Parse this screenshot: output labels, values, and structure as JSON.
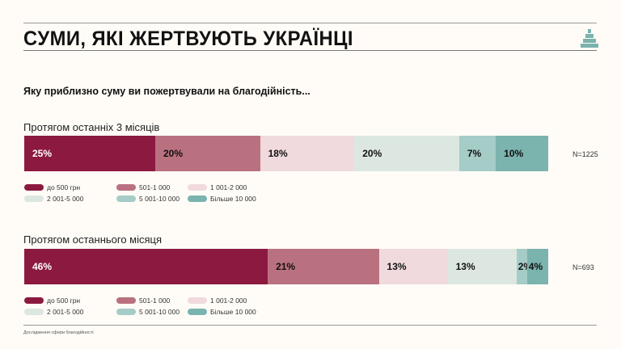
{
  "title": "СУМИ, ЯКІ ЖЕРТВУЮТЬ УКРАЇНЦІ",
  "question": "Яку приблизно суму ви пожертвували на благодійність...",
  "footer": "Дослідження сфери благодійності",
  "colors": [
    "#8c1a40",
    "#ba717f",
    "#f0dadd",
    "#dce7e1",
    "#a5ccc7",
    "#7bb3ae"
  ],
  "chart_data": [
    {
      "type": "bar",
      "orientation": "horizontal-stacked",
      "title": "Протягом останніх 3 місяців",
      "n_label": "N=1225",
      "categories": [
        "до 500 грн",
        "501-1 000",
        "1 001-2 000",
        "2 001-5 000",
        "5 001-10 000",
        "Більше 10 000"
      ],
      "values": [
        25,
        20,
        18,
        20,
        7,
        10
      ],
      "labels": [
        "25%",
        "20%",
        "18%",
        "20%",
        "7%",
        "10%"
      ],
      "legend": "bottom"
    },
    {
      "type": "bar",
      "orientation": "horizontal-stacked",
      "title": "Протягом останнього місяця",
      "n_label": "N=693",
      "categories": [
        "до 500 грн",
        "501-1 000",
        "1 001-2 000",
        "2 001-5 000",
        "5 001-10 000",
        "Більше 10 000"
      ],
      "values": [
        46,
        21,
        13,
        13,
        2,
        4
      ],
      "labels": [
        "46%",
        "21%",
        "13%",
        "13%",
        "2%",
        "4%"
      ],
      "legend": "bottom"
    }
  ]
}
